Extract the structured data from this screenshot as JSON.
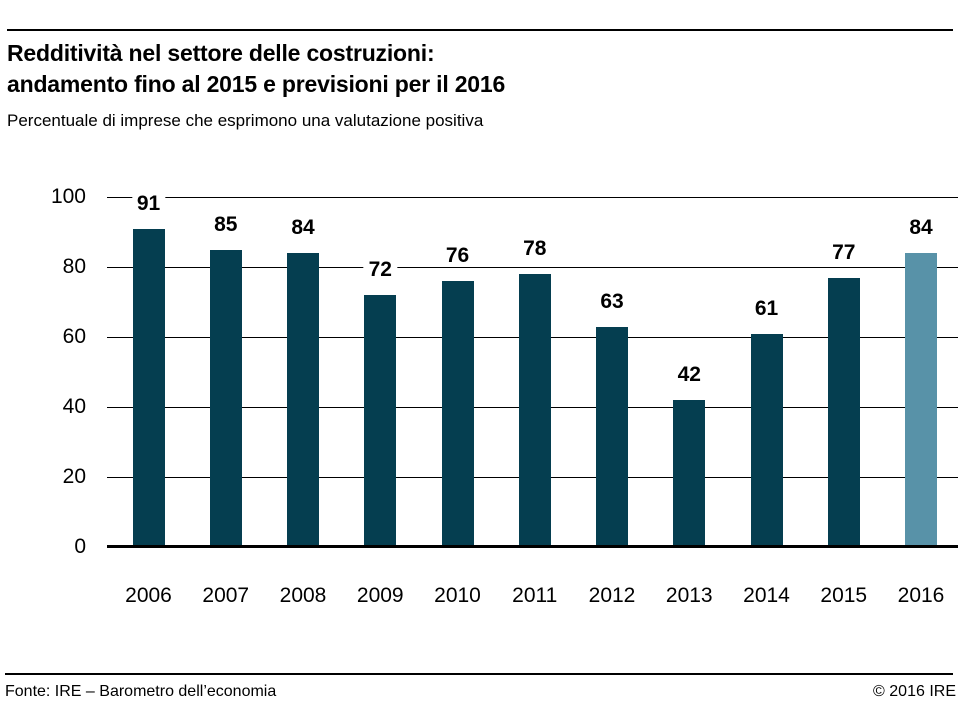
{
  "header": {
    "title_line1": "Redditività nel settore delle costruzioni:",
    "title_line2": "andamento fino al 2015 e previsioni per il 2016",
    "subtitle": "Percentuale di imprese che esprimono una valutazione positiva"
  },
  "chart_data": {
    "type": "bar",
    "title": "Redditività nel settore delle costruzioni: andamento fino al 2015 e previsioni per il 2016",
    "subtitle": "Percentuale di imprese che esprimono una valutazione positiva",
    "categories": [
      "2006",
      "2007",
      "2008",
      "2009",
      "2010",
      "2011",
      "2012",
      "2013",
      "2014",
      "2015",
      "2016"
    ],
    "values": [
      91,
      85,
      84,
      72,
      76,
      78,
      63,
      42,
      61,
      77,
      84
    ],
    "highlight_index": 10,
    "highlight_meaning": "previsione 2016",
    "bar_color": "#053e50",
    "highlight_color": "#5892a8",
    "xlabel": "",
    "ylabel": "",
    "ylim": [
      0,
      100
    ],
    "yticks": [
      0,
      20,
      40,
      60,
      80,
      100
    ],
    "grid": true,
    "legend": "none",
    "value_labels": true
  },
  "footer": {
    "source": "Fonte: IRE – Barometro dell’economia",
    "copyright": "© 2016 IRE"
  }
}
